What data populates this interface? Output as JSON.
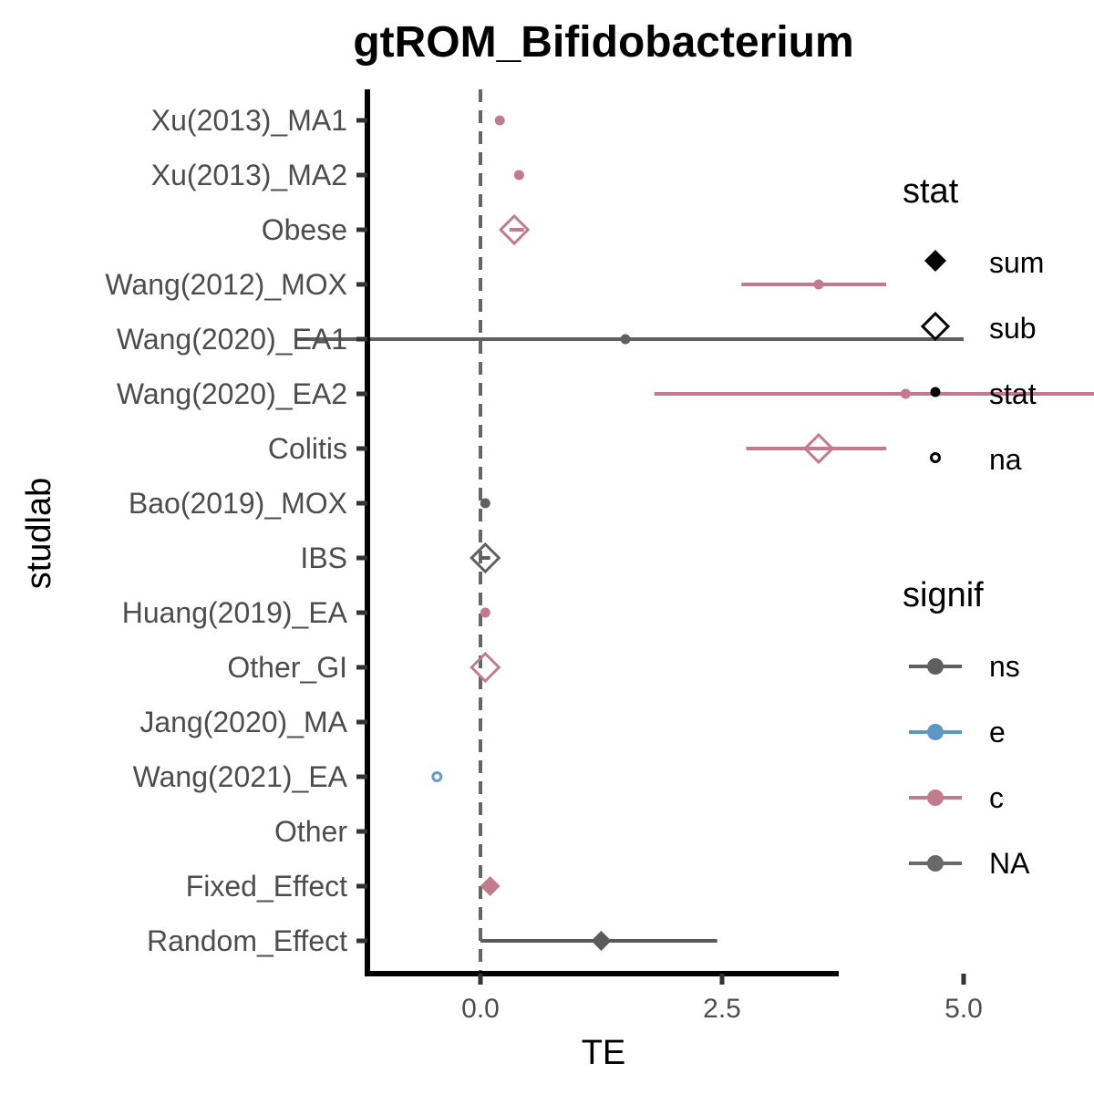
{
  "chart_data": {
    "type": "forest",
    "title": "gtROM_Bifidobacterium",
    "xlabel": "TE",
    "ylabel": "studlab",
    "xlim": [
      -2.3,
      7.5
    ],
    "xticks": [
      "0.0",
      "2.5",
      "5.0"
    ],
    "xtick_values": [
      0,
      2.5,
      5.0
    ],
    "reference_line": 0,
    "grid": false,
    "rows": [
      {
        "label": "Xu(2013)_MA1",
        "te": 0.2,
        "lower": null,
        "upper": null,
        "stat": "stat",
        "signif": "c"
      },
      {
        "label": "Xu(2013)_MA2",
        "te": 0.4,
        "lower": null,
        "upper": null,
        "stat": "stat",
        "signif": "c"
      },
      {
        "label": "Obese",
        "te": 0.35,
        "lower": 0.3,
        "upper": 0.45,
        "stat": "sub",
        "signif": "c"
      },
      {
        "label": "Wang(2012)_MOX",
        "te": 3.5,
        "lower": 2.7,
        "upper": 4.2,
        "stat": "stat",
        "signif": "c"
      },
      {
        "label": "Wang(2020)_EA1",
        "te": 1.5,
        "lower": -1.9,
        "upper": 5.0,
        "stat": "stat",
        "signif": "ns"
      },
      {
        "label": "Wang(2020)_EA2",
        "te": 4.4,
        "lower": 1.8,
        "upper": 7.0,
        "stat": "stat",
        "signif": "c"
      },
      {
        "label": "Colitis",
        "te": 3.5,
        "lower": 2.75,
        "upper": 4.2,
        "stat": "sub",
        "signif": "c"
      },
      {
        "label": "Bao(2019)_MOX",
        "te": 0.05,
        "lower": null,
        "upper": null,
        "stat": "stat",
        "signif": "ns"
      },
      {
        "label": "IBS",
        "te": 0.05,
        "lower": 0.0,
        "upper": 0.1,
        "stat": "sub",
        "signif": "ns"
      },
      {
        "label": "Huang(2019)_EA",
        "te": 0.05,
        "lower": null,
        "upper": null,
        "stat": "stat",
        "signif": "c"
      },
      {
        "label": "Other_GI",
        "te": 0.05,
        "lower": null,
        "upper": null,
        "stat": "sub",
        "signif": "c"
      },
      {
        "label": "Jang(2020)_MA",
        "te": null,
        "lower": null,
        "upper": null,
        "stat": null,
        "signif": null
      },
      {
        "label": "Wang(2021)_EA",
        "te": -0.45,
        "lower": null,
        "upper": null,
        "stat": "na",
        "signif": "e"
      },
      {
        "label": "Other",
        "te": null,
        "lower": null,
        "upper": null,
        "stat": null,
        "signif": null
      },
      {
        "label": "Fixed_Effect",
        "te": 0.1,
        "lower": null,
        "upper": null,
        "stat": "sum",
        "signif": "c"
      },
      {
        "label": "Random_Effect",
        "te": 1.25,
        "lower": 0.0,
        "upper": 2.45,
        "stat": "sum",
        "signif": "NA"
      }
    ],
    "legends": [
      {
        "title": "stat",
        "items": [
          {
            "label": "sum",
            "shape": "diamond-filled"
          },
          {
            "label": "sub",
            "shape": "diamond-open"
          },
          {
            "label": "stat",
            "shape": "dot"
          },
          {
            "label": "na",
            "shape": "circle-open"
          }
        ]
      },
      {
        "title": "signif",
        "items": [
          {
            "label": "ns",
            "color": "#5f5f5f"
          },
          {
            "label": "e",
            "color": "#5e96c4"
          },
          {
            "label": "c",
            "color": "#c27b8e"
          },
          {
            "label": "NA",
            "color": "#696969"
          }
        ]
      }
    ],
    "colors": {
      "ns": "#5f5f5f",
      "e": "#6a9bc6",
      "c": "#c27b8e",
      "NA": "#5a5a5a",
      "axis": "#000000",
      "ref_line": "#666666"
    }
  }
}
